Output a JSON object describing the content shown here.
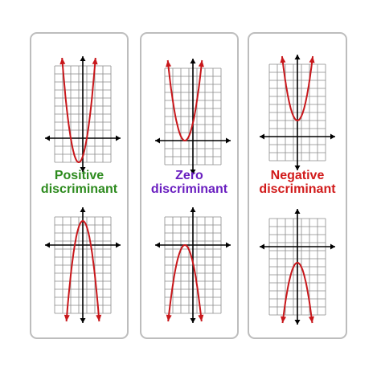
{
  "panels": [
    {
      "label_line1": "Positive",
      "label_line2": "discriminant",
      "color": "#2e8b1f",
      "top_graph": {
        "vertex": [
          -0.5,
          -3
        ],
        "opens": "up",
        "x_intercepts": [
          -1.5,
          0.5
        ]
      },
      "bottom_graph": {
        "vertex": [
          0,
          3
        ],
        "opens": "down",
        "x_intercepts": [
          -1,
          1
        ]
      }
    },
    {
      "label_line1": "Zero",
      "label_line2": "discriminant",
      "color": "#6a1fc0",
      "top_graph": {
        "vertex": [
          -1,
          0
        ],
        "opens": "up",
        "x_intercepts": [
          -1
        ]
      },
      "bottom_graph": {
        "vertex": [
          -1,
          0
        ],
        "opens": "down",
        "x_intercepts": [
          -1
        ]
      }
    },
    {
      "label_line1": "Negative",
      "label_line2": "discriminant",
      "color": "#d11a1a",
      "top_graph": {
        "vertex": [
          0,
          2
        ],
        "opens": "up",
        "x_intercepts": []
      },
      "bottom_graph": {
        "vertex": [
          0,
          -2
        ],
        "opens": "down",
        "x_intercepts": []
      }
    }
  ],
  "curve_color": "#c8171b",
  "grid_color": "#8a8a8a",
  "axis_color": "#000000"
}
